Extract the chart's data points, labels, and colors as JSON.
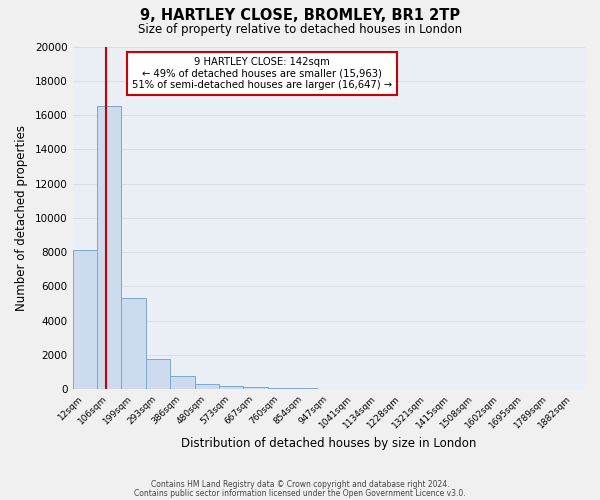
{
  "title": "9, HARTLEY CLOSE, BROMLEY, BR1 2TP",
  "subtitle": "Size of property relative to detached houses in London",
  "xlabel": "Distribution of detached houses by size in London",
  "ylabel": "Number of detached properties",
  "bar_labels": [
    "12sqm",
    "106sqm",
    "199sqm",
    "293sqm",
    "386sqm",
    "480sqm",
    "573sqm",
    "667sqm",
    "760sqm",
    "854sqm",
    "947sqm",
    "1041sqm",
    "1134sqm",
    "1228sqm",
    "1321sqm",
    "1415sqm",
    "1508sqm",
    "1602sqm",
    "1695sqm",
    "1789sqm",
    "1882sqm"
  ],
  "bar_values": [
    8100,
    16500,
    5300,
    1750,
    750,
    300,
    200,
    100,
    80,
    50,
    0,
    0,
    0,
    0,
    0,
    0,
    0,
    0,
    0,
    0,
    0
  ],
  "bar_color": "#ccdcee",
  "bar_edge_color": "#7aa8cc",
  "background_color": "#eaeef5",
  "grid_color": "#d8dde8",
  "fig_background": "#f0f0f0",
  "vline_color": "#cc0000",
  "vline_pos": 1.39,
  "ylim": [
    0,
    20000
  ],
  "yticks": [
    0,
    2000,
    4000,
    6000,
    8000,
    10000,
    12000,
    14000,
    16000,
    18000,
    20000
  ],
  "annotation_title": "9 HARTLEY CLOSE: 142sqm",
  "annotation_line1": "← 49% of detached houses are smaller (15,963)",
  "annotation_line2": "51% of semi-detached houses are larger (16,647) →",
  "annotation_box_color": "#ffffff",
  "annotation_box_edge": "#cc0000",
  "footer1": "Contains HM Land Registry data © Crown copyright and database right 2024.",
  "footer2": "Contains public sector information licensed under the Open Government Licence v3.0."
}
